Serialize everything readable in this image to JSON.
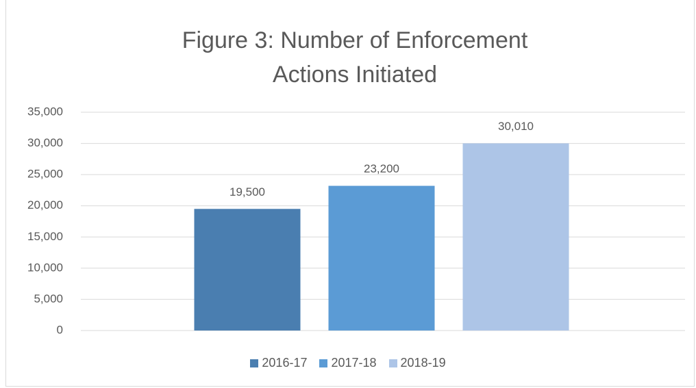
{
  "chart_data": {
    "type": "bar",
    "title": "Figure 3: Number of Enforcement Actions Initiated",
    "categories": [
      null
    ],
    "series": [
      {
        "name": "2016-17",
        "color": "#4a7eb0",
        "values": [
          19500
        ],
        "value_labels": [
          "19,500"
        ]
      },
      {
        "name": "2017-18",
        "color": "#5b9bd5",
        "values": [
          23200
        ],
        "value_labels": [
          "23,200"
        ]
      },
      {
        "name": "2018-19",
        "color": "#adc5e7",
        "values": [
          30010
        ],
        "value_labels": [
          "30,010"
        ]
      }
    ],
    "ylim": [
      0,
      35000
    ],
    "yticks": [
      0,
      {
        "value": 5000,
        "label": "5,000"
      },
      {
        "value": 10000,
        "label": "10,000"
      },
      {
        "value": 15000,
        "label": "15,000"
      },
      {
        "value": 20000,
        "label": "20,000"
      },
      {
        "value": 25000,
        "label": "25,000"
      },
      {
        "value": 30000,
        "label": "30,000"
      },
      {
        "value": 35000,
        "label": "35,000"
      }
    ],
    "grid": true,
    "legend": "bottom"
  }
}
